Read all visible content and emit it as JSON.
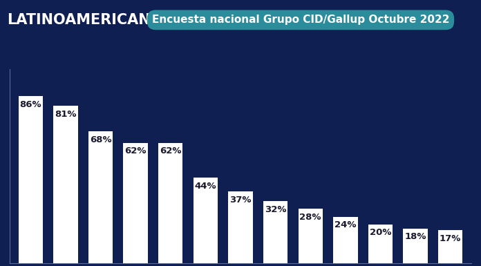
{
  "chart_data": {
    "type": "bar",
    "title": "LATINOAMERICANOS",
    "subtitle": "Encuesta nacional Grupo CID/Gallup Octubre 2022",
    "categories": [
      null,
      null,
      null,
      null,
      null,
      null,
      null,
      null,
      null,
      null,
      null,
      null,
      null
    ],
    "values": [
      86,
      81,
      68,
      62,
      62,
      44,
      37,
      32,
      28,
      24,
      20,
      18,
      17
    ],
    "value_labels": [
      "86%",
      "81%",
      "68%",
      "62%",
      "62%",
      "44%",
      "37%",
      "32%",
      "28%",
      "24%",
      "20%",
      "18%",
      "17%"
    ],
    "color": "#ffffff",
    "ylim": [
      0,
      100
    ],
    "yticks": [],
    "grid": false,
    "data_labels": true,
    "tick_labels": false
  }
}
